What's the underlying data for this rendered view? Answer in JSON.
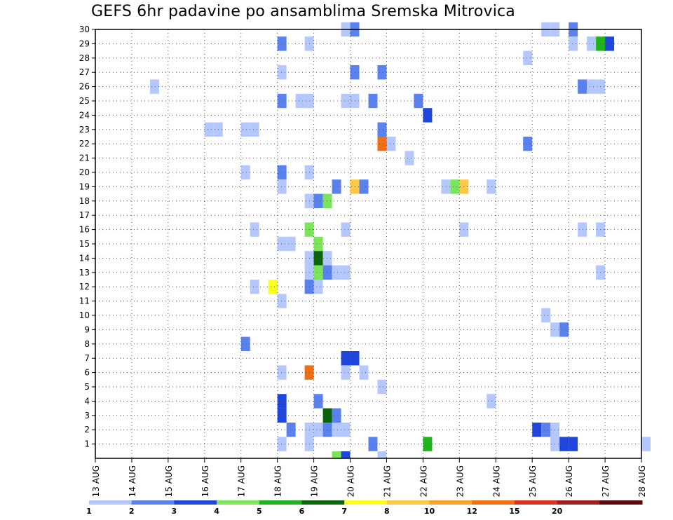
{
  "chart_data": {
    "type": "heatmap",
    "title": "GEFS 6hr padavine po ansamblima Sremska Mitrovica",
    "x_ticks": [
      "13 AUG",
      "14 AUG",
      "15 AUG",
      "16 AUG",
      "17 AUG",
      "18 AUG",
      "19 AUG",
      "20 AUG",
      "21 AUG",
      "22 AUG",
      "23 AUG",
      "24 AUG",
      "25 AUG",
      "26 AUG",
      "27 AUG",
      "28 AUG"
    ],
    "y_ticks": [
      1,
      2,
      3,
      4,
      5,
      6,
      7,
      8,
      9,
      10,
      11,
      12,
      13,
      14,
      15,
      16,
      17,
      18,
      19,
      20,
      21,
      22,
      23,
      24,
      25,
      26,
      27,
      28,
      29,
      30
    ],
    "x_range_days": [
      0,
      15
    ],
    "y_range": [
      0,
      30
    ],
    "grid": true,
    "colorbar": {
      "labels": [
        "1",
        "2",
        "3",
        "4",
        "5",
        "6",
        "7",
        "8",
        "10",
        "12",
        "15",
        "20"
      ],
      "colors": [
        "#b4c8ff",
        "#5a82ee",
        "#1e46dc",
        "#7be55a",
        "#1eb41e",
        "#0a640a",
        "#ffff1e",
        "#ffc846",
        "#ffa028",
        "#f06e14",
        "#dc321e",
        "#a01e1e",
        "#5a0a0a"
      ]
    },
    "cells": [
      {
        "member": 30,
        "day": 6.75,
        "level": 0
      },
      {
        "member": 30,
        "day": 7.0,
        "level": 1
      },
      {
        "member": 30,
        "day": 12.25,
        "level": 0
      },
      {
        "member": 30,
        "day": 12.5,
        "level": 0
      },
      {
        "member": 30,
        "day": 13.0,
        "level": 1
      },
      {
        "member": 29,
        "day": 5.0,
        "level": 1
      },
      {
        "member": 29,
        "day": 5.75,
        "level": 0
      },
      {
        "member": 29,
        "day": 13.0,
        "level": 0
      },
      {
        "member": 29,
        "day": 13.5,
        "level": 0
      },
      {
        "member": 29,
        "day": 13.75,
        "level": 4
      },
      {
        "member": 29,
        "day": 14.0,
        "level": 2
      },
      {
        "member": 28,
        "day": 11.75,
        "level": 0
      },
      {
        "member": 27,
        "day": 5.0,
        "level": 0
      },
      {
        "member": 27,
        "day": 7.0,
        "level": 1
      },
      {
        "member": 27,
        "day": 7.75,
        "level": 1
      },
      {
        "member": 26,
        "day": 1.5,
        "level": 0
      },
      {
        "member": 26,
        "day": 13.25,
        "level": 1
      },
      {
        "member": 26,
        "day": 13.5,
        "level": 0
      },
      {
        "member": 26,
        "day": 13.75,
        "level": 0
      },
      {
        "member": 25,
        "day": 5.0,
        "level": 1
      },
      {
        "member": 25,
        "day": 5.5,
        "level": 0
      },
      {
        "member": 25,
        "day": 5.75,
        "level": 0
      },
      {
        "member": 25,
        "day": 6.75,
        "level": 0
      },
      {
        "member": 25,
        "day": 7.0,
        "level": 0
      },
      {
        "member": 25,
        "day": 7.5,
        "level": 1
      },
      {
        "member": 25,
        "day": 8.75,
        "level": 1
      },
      {
        "member": 24,
        "day": 9.0,
        "level": 2
      },
      {
        "member": 23,
        "day": 3.0,
        "level": 0
      },
      {
        "member": 23,
        "day": 3.25,
        "level": 0
      },
      {
        "member": 23,
        "day": 4.0,
        "level": 0
      },
      {
        "member": 23,
        "day": 4.25,
        "level": 0
      },
      {
        "member": 23,
        "day": 7.75,
        "level": 1
      },
      {
        "member": 22,
        "day": 7.75,
        "level": 9
      },
      {
        "member": 22,
        "day": 8.0,
        "level": 0
      },
      {
        "member": 22,
        "day": 11.75,
        "level": 1
      },
      {
        "member": 21,
        "day": 8.5,
        "level": 0
      },
      {
        "member": 20,
        "day": 4.0,
        "level": 0
      },
      {
        "member": 20,
        "day": 5.0,
        "level": 1
      },
      {
        "member": 20,
        "day": 5.75,
        "level": 0
      },
      {
        "member": 19,
        "day": 5.0,
        "level": 0
      },
      {
        "member": 19,
        "day": 6.5,
        "level": 1
      },
      {
        "member": 19,
        "day": 7.0,
        "level": 7
      },
      {
        "member": 19,
        "day": 7.25,
        "level": 1
      },
      {
        "member": 19,
        "day": 9.5,
        "level": 0
      },
      {
        "member": 19,
        "day": 9.75,
        "level": 3
      },
      {
        "member": 19,
        "day": 10.0,
        "level": 7
      },
      {
        "member": 19,
        "day": 10.75,
        "level": 0
      },
      {
        "member": 18,
        "day": 5.75,
        "level": 0
      },
      {
        "member": 18,
        "day": 6.0,
        "level": 1
      },
      {
        "member": 18,
        "day": 6.25,
        "level": 3
      },
      {
        "member": 16,
        "day": 4.25,
        "level": 0
      },
      {
        "member": 16,
        "day": 5.75,
        "level": 3
      },
      {
        "member": 16,
        "day": 6.75,
        "level": 0
      },
      {
        "member": 16,
        "day": 10.0,
        "level": 0
      },
      {
        "member": 16,
        "day": 13.25,
        "level": 0
      },
      {
        "member": 16,
        "day": 13.75,
        "level": 0
      },
      {
        "member": 15,
        "day": 5.0,
        "level": 0
      },
      {
        "member": 15,
        "day": 5.25,
        "level": 0
      },
      {
        "member": 15,
        "day": 6.0,
        "level": 3
      },
      {
        "member": 14,
        "day": 5.75,
        "level": 0
      },
      {
        "member": 14,
        "day": 6.0,
        "level": 5
      },
      {
        "member": 14,
        "day": 6.25,
        "level": 0
      },
      {
        "member": 13,
        "day": 5.75,
        "level": 0
      },
      {
        "member": 13,
        "day": 6.0,
        "level": 3
      },
      {
        "member": 13,
        "day": 6.25,
        "level": 1
      },
      {
        "member": 13,
        "day": 6.5,
        "level": 0
      },
      {
        "member": 13,
        "day": 6.75,
        "level": 0
      },
      {
        "member": 13,
        "day": 13.75,
        "level": 0
      },
      {
        "member": 12,
        "day": 4.25,
        "level": 0
      },
      {
        "member": 12,
        "day": 4.75,
        "level": 6
      },
      {
        "member": 12,
        "day": 5.75,
        "level": 1
      },
      {
        "member": 12,
        "day": 6.0,
        "level": 0
      },
      {
        "member": 11,
        "day": 5.0,
        "level": 0
      },
      {
        "member": 10,
        "day": 12.25,
        "level": 0
      },
      {
        "member": 9,
        "day": 12.5,
        "level": 0
      },
      {
        "member": 9,
        "day": 12.75,
        "level": 1
      },
      {
        "member": 8,
        "day": 4.0,
        "level": 1
      },
      {
        "member": 7,
        "day": 6.75,
        "level": 2
      },
      {
        "member": 7,
        "day": 7.0,
        "level": 2
      },
      {
        "member": 6,
        "day": 5.0,
        "level": 0
      },
      {
        "member": 6,
        "day": 5.75,
        "level": 9
      },
      {
        "member": 6,
        "day": 6.75,
        "level": 0
      },
      {
        "member": 6,
        "day": 7.25,
        "level": 0
      },
      {
        "member": 5,
        "day": 7.75,
        "level": 0
      },
      {
        "member": 4,
        "day": 5.0,
        "level": 2
      },
      {
        "member": 4,
        "day": 6.0,
        "level": 1
      },
      {
        "member": 4,
        "day": 10.75,
        "level": 0
      },
      {
        "member": 3,
        "day": 5.0,
        "level": 2
      },
      {
        "member": 3,
        "day": 6.25,
        "level": 5
      },
      {
        "member": 3,
        "day": 6.5,
        "level": 1
      },
      {
        "member": 2,
        "day": 5.25,
        "level": 1
      },
      {
        "member": 2,
        "day": 5.75,
        "level": 0
      },
      {
        "member": 2,
        "day": 6.0,
        "level": 0
      },
      {
        "member": 2,
        "day": 6.25,
        "level": 1
      },
      {
        "member": 2,
        "day": 6.5,
        "level": 0
      },
      {
        "member": 2,
        "day": 6.75,
        "level": 0
      },
      {
        "member": 2,
        "day": 12.0,
        "level": 2
      },
      {
        "member": 2,
        "day": 12.25,
        "level": 1
      },
      {
        "member": 2,
        "day": 12.5,
        "level": 0
      },
      {
        "member": 1,
        "day": 5.0,
        "level": 0
      },
      {
        "member": 1,
        "day": 5.75,
        "level": 0
      },
      {
        "member": 1,
        "day": 7.5,
        "level": 1
      },
      {
        "member": 1,
        "day": 9.0,
        "level": 4
      },
      {
        "member": 1,
        "day": 12.5,
        "level": 0
      },
      {
        "member": 1,
        "day": 12.75,
        "level": 2
      },
      {
        "member": 1,
        "day": 13.0,
        "level": 2
      },
      {
        "member": 1,
        "day": 15.0,
        "level": 0
      },
      {
        "member": 0,
        "day": 6.5,
        "level": 3
      },
      {
        "member": 0,
        "day": 6.75,
        "level": 2
      },
      {
        "member": 0,
        "day": 7.75,
        "level": 0
      }
    ]
  }
}
